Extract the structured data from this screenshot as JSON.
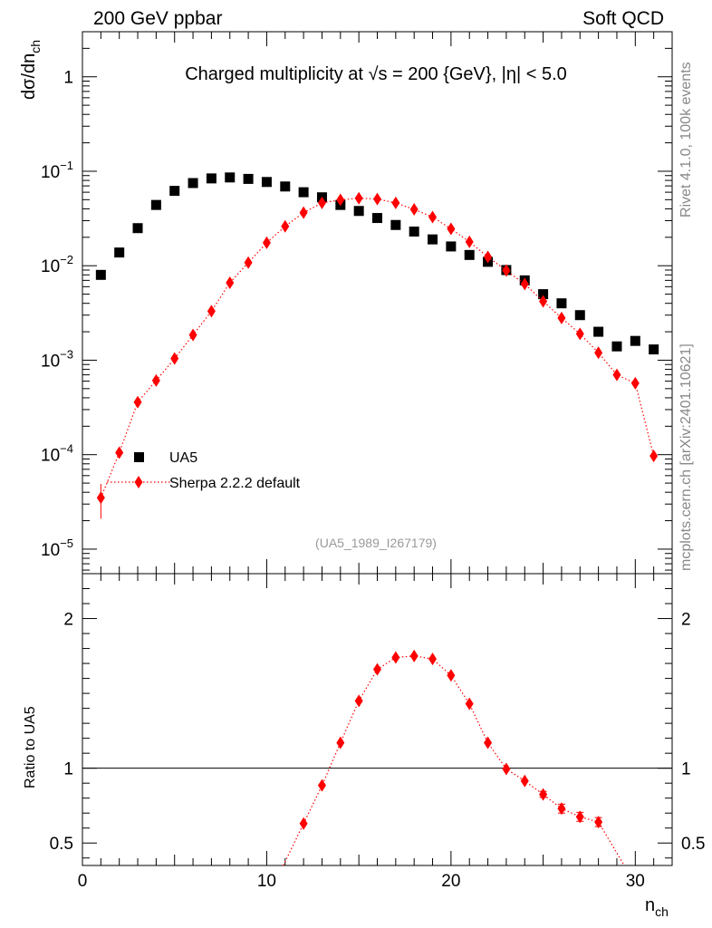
{
  "header": {
    "left": "200 GeV ppbar",
    "right": "Soft QCD"
  },
  "side_labels": {
    "top": "Rivet 4.1.0,  100k events",
    "bottom": "mcplots.cern.ch [arXiv:2401.10621]"
  },
  "chart_data": [
    {
      "type": "scatter",
      "panel": "main",
      "title": "Charged multiplicity at √s = 200 {GeV}, |η| < 5.0",
      "analysis_label": "(UA5_1989_I267179)",
      "ylabel": "dσ/dn_ch",
      "ylabel_main": "dσ/dn",
      "ylabel_sub": "ch",
      "yscale": "log",
      "ylim": [
        5.5e-06,
        3
      ],
      "xlim": [
        0,
        32
      ],
      "y_ticks": [
        {
          "base": "10",
          "exp": "−5",
          "value": 1e-05
        },
        {
          "base": "10",
          "exp": "−4",
          "value": 0.0001
        },
        {
          "base": "10",
          "exp": "−3",
          "value": 0.001
        },
        {
          "base": "10",
          "exp": "−2",
          "value": 0.01
        },
        {
          "base": "10",
          "exp": "−1",
          "value": 0.1
        },
        {
          "base": "1",
          "exp": "",
          "value": 1
        }
      ],
      "legend_position": "lower-left",
      "series": [
        {
          "name": "UA5",
          "marker": "square",
          "color": "#000000",
          "x": [
            1,
            2,
            3,
            4,
            5,
            6,
            7,
            8,
            9,
            10,
            11,
            12,
            13,
            14,
            15,
            16,
            17,
            18,
            19,
            20,
            21,
            22,
            23,
            24,
            25,
            26,
            27,
            28,
            29,
            30,
            31
          ],
          "y": [
            0.008,
            0.0138,
            0.025,
            0.044,
            0.062,
            0.075,
            0.084,
            0.086,
            0.083,
            0.077,
            0.069,
            0.06,
            0.053,
            0.044,
            0.038,
            0.032,
            0.027,
            0.023,
            0.019,
            0.016,
            0.013,
            0.011,
            0.009,
            0.007,
            0.005,
            0.004,
            0.003,
            0.002,
            0.0014,
            0.0016,
            0.0013
          ]
        },
        {
          "name": "Sherpa 2.2.2 default",
          "marker": "diamond",
          "line": "dotted",
          "color": "#ff0000",
          "x": [
            1,
            2,
            3,
            4,
            5,
            6,
            7,
            8,
            9,
            10,
            11,
            12,
            13,
            14,
            15,
            16,
            17,
            18,
            19,
            20,
            21,
            22,
            23,
            24,
            25,
            26,
            27,
            28,
            29,
            30,
            31
          ],
          "y": [
            3.5e-05,
            0.000105,
            0.00036,
            0.00061,
            0.00104,
            0.00185,
            0.0033,
            0.0066,
            0.0108,
            0.0175,
            0.0261,
            0.0365,
            0.0462,
            0.0498,
            0.0518,
            0.0508,
            0.0462,
            0.0395,
            0.0328,
            0.0246,
            0.0179,
            0.0124,
            0.0089,
            0.0064,
            0.0042,
            0.0028,
            0.0019,
            0.0012,
            0.0007,
            0.00057,
            9.7e-05
          ],
          "yerr": [
            1.4e-05,
            1e-05,
            2e-05,
            0,
            0,
            0,
            0,
            0,
            0,
            0,
            0,
            0,
            0,
            0,
            0,
            0,
            0,
            0,
            0,
            0,
            0,
            0,
            0,
            0,
            0,
            0,
            0,
            0,
            0,
            0,
            0
          ]
        }
      ]
    },
    {
      "type": "line",
      "panel": "ratio",
      "ylabel": "Ratio to UA5",
      "xlabel": "n_ch",
      "xlabel_main": "n",
      "xlabel_sub": "ch",
      "xlim": [
        0,
        32
      ],
      "ylim": [
        0.35,
        2.3
      ],
      "reference_line": 1,
      "x_ticks": [
        {
          "label": "0",
          "value": 0
        },
        {
          "label": "10",
          "value": 10
        },
        {
          "label": "20",
          "value": 20
        },
        {
          "label": "30",
          "value": 30
        }
      ],
      "y_ticks": [
        {
          "label": "0.5",
          "value": 0.5
        },
        {
          "label": "1",
          "value": 1
        },
        {
          "label": "2",
          "value": 2
        }
      ],
      "series": [
        {
          "name": "Sherpa 2.2.2 default / UA5",
          "color": "#ff0000",
          "x": [
            12,
            13,
            14,
            15,
            16,
            17,
            18,
            19,
            20,
            21,
            22,
            23,
            24,
            25,
            26,
            27,
            28
          ],
          "y": [
            0.63,
            0.885,
            1.17,
            1.45,
            1.66,
            1.74,
            1.75,
            1.73,
            1.62,
            1.43,
            1.17,
            0.995,
            0.915,
            0.825,
            0.73,
            0.675,
            0.64
          ],
          "yerr": [
            0,
            0,
            0,
            0,
            0,
            0,
            0,
            0,
            0,
            0,
            0,
            0,
            0,
            0.02,
            0.03,
            0.03,
            0.03
          ],
          "line_segments": [
            {
              "x": [
                10.9,
                12
              ],
              "y": [
                0.35,
                0.63
              ]
            },
            {
              "x": [
                28,
                29.4
              ],
              "y": [
                0.64,
                0.35
              ]
            }
          ]
        }
      ]
    }
  ]
}
